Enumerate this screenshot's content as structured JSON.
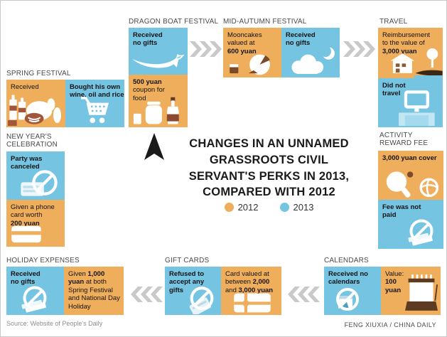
{
  "title": {
    "text": "CHANGES IN AN UNNAMED\nGRASSROOTS CIVIL\nSERVANT'S PERKS IN 2013,\nCOMPARED WITH 2012"
  },
  "legend": {
    "items": [
      {
        "label": "2012",
        "color": "#efae5b"
      },
      {
        "label": "2013",
        "color": "#74c4e2"
      }
    ]
  },
  "colors": {
    "year_2012_orange": "#efae5b",
    "year_2013_blue": "#74c4e2",
    "chevron_grey": "#c9c9c9",
    "icon_brown": "#7a4a2b"
  },
  "decorations": {
    "top_flow_arrows": "chevrons-right",
    "bottom_flow_arrows": "chevrons-left",
    "center_pointer": "black-dart-up"
  },
  "sections": {
    "spring_festival": {
      "label": "SPRING FESTIVAL",
      "boxes": [
        {
          "year": "2012",
          "icon": "wine-and-food-icon",
          "text": [
            {
              "t": "Received",
              "b": false
            }
          ]
        },
        {
          "year": "2013",
          "icon": "shopping-cart-icon",
          "text": [
            {
              "t": "Bought his own\nwine, oil and rice",
              "b": true
            }
          ]
        }
      ]
    },
    "dragon_boat_festival": {
      "label": "DRAGON BOAT FESTIVAL",
      "boxes": [
        {
          "year": "2013",
          "icon": "dragon-boat-icon",
          "text": [
            {
              "t": "Received\nno gifts",
              "b": true
            }
          ]
        },
        {
          "year": "2012",
          "icon": "food-jars-icon",
          "text": [
            {
              "t": "500 yuan",
              "b": true
            },
            {
              "t": "\ncoupon for\nfood",
              "b": false
            }
          ]
        }
      ]
    },
    "mid_autumn_festival": {
      "label": "MID-AUTUMN FESTIVAL",
      "boxes": [
        {
          "year": "2012",
          "icon": "mooncakes-icon",
          "text": [
            {
              "t": "Mooncakes\nvalued at\n",
              "b": false
            },
            {
              "t": "600 yuan",
              "b": true
            }
          ]
        },
        {
          "year": "2013",
          "icon": "moon-cloud-icon",
          "text": [
            {
              "t": "Received\nno gifts",
              "b": true
            }
          ]
        }
      ]
    },
    "travel": {
      "label": "TRAVEL",
      "boxes": [
        {
          "year": "2012",
          "icon": "house-tree-road-icon",
          "text": [
            {
              "t": "Reimbursement\nto the value of\n",
              "b": false
            },
            {
              "t": "3,000 yuan",
              "b": true
            }
          ]
        },
        {
          "year": "2013",
          "icon": "computer-desk-icon",
          "text": [
            {
              "t": "Did not\ntravel",
              "b": true
            }
          ]
        }
      ]
    },
    "new_years_celebration": {
      "label": "NEW YEAR'S\nCELEBRATION",
      "boxes": [
        {
          "year": "2013",
          "icon": "no-party-card-icon",
          "text": [
            {
              "t": "Party was\ncanceled",
              "b": true
            }
          ]
        },
        {
          "year": "2012",
          "icon": "phone-card-icon",
          "text": [
            {
              "t": "Given a phone\ncard worth\n",
              "b": false
            },
            {
              "t": "200 yuan",
              "b": true
            }
          ]
        }
      ]
    },
    "activity_reward_fee": {
      "label": "ACTIVITY\nREWARD FEE",
      "boxes": [
        {
          "year": "2012",
          "icon": "pingpong-volleyball-icon",
          "text": [
            {
              "t": "3,000 yuan cover",
              "b": true
            }
          ]
        },
        {
          "year": "2013",
          "icon": "no-money-icon",
          "text": [
            {
              "t": "Fee was not\npaid",
              "b": true
            }
          ]
        }
      ]
    },
    "holiday_expenses": {
      "label": "HOLIDAY EXPENSES",
      "boxes": [
        {
          "year": "2013",
          "icon": "no-money-icon",
          "text": [
            {
              "t": "Received\nno gifts",
              "b": true
            }
          ]
        },
        {
          "year": "2012",
          "icon": "none",
          "text": [
            {
              "t": "Given ",
              "b": false
            },
            {
              "t": "1,000\nyuan",
              "b": true
            },
            {
              "t": " at both\nSpring Festival\nand National Day\nHoliday",
              "b": false
            }
          ]
        }
      ]
    },
    "gift_cards": {
      "label": "GIFT CARDS",
      "boxes": [
        {
          "year": "2013",
          "icon": "no-gift-cards-icon",
          "text": [
            {
              "t": "Refused to\naccept any\ngifts",
              "b": true
            }
          ]
        },
        {
          "year": "2012",
          "icon": "gift-card-icon",
          "text": [
            {
              "t": "Card valued at\nbetween ",
              "b": false
            },
            {
              "t": "2,000",
              "b": true
            },
            {
              "t": "\nand ",
              "b": false
            },
            {
              "t": "3,000 yuan",
              "b": true
            }
          ]
        }
      ]
    },
    "calendars": {
      "label": "CALENDARS",
      "boxes": [
        {
          "year": "2013",
          "icon": "no-calendar-icon",
          "text": [
            {
              "t": "Received no\ncalendars",
              "b": true
            }
          ]
        },
        {
          "year": "2012",
          "icon": "desk-calendar-icon",
          "text": [
            {
              "t": "Value:\n",
              "b": false
            },
            {
              "t": "100\nyuan",
              "b": true
            }
          ]
        }
      ]
    }
  },
  "footer": {
    "source": "Source: Website of People's Daily",
    "credit": "FENG XIUXIA / CHINA DAILY"
  }
}
